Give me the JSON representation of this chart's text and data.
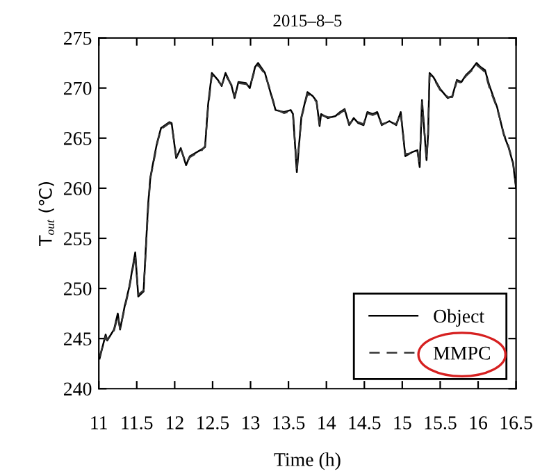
{
  "chart_data": {
    "type": "line",
    "title": "2015–8–5",
    "xlabel": "Time (h)",
    "ylabel": "T$_{out}$ (℃)",
    "xlim": [
      11,
      16.5
    ],
    "xticks": [
      11,
      11.5,
      12,
      12.5,
      13,
      13.5,
      14,
      14.5,
      15,
      15.5,
      16,
      16.5
    ],
    "ylim": [
      240,
      275
    ],
    "yticks": [
      240,
      245,
      250,
      255,
      260,
      265,
      270,
      275
    ],
    "grid": false,
    "legend": "bottom right",
    "x": [
      11.01,
      11.09,
      11.11,
      11.2,
      11.25,
      11.28,
      11.34,
      11.4,
      11.48,
      11.52,
      11.59,
      11.65,
      11.68,
      11.74,
      11.77,
      11.82,
      11.93,
      11.96,
      12.02,
      12.08,
      12.15,
      12.2,
      12.36,
      12.4,
      12.44,
      12.49,
      12.57,
      12.62,
      12.67,
      12.75,
      12.79,
      12.84,
      12.94,
      12.99,
      13.06,
      13.1,
      13.19,
      13.25,
      13.33,
      13.44,
      13.53,
      13.56,
      13.61,
      13.67,
      13.75,
      13.82,
      13.87,
      13.91,
      13.93,
      14.02,
      14.12,
      14.18,
      14.24,
      14.3,
      14.36,
      14.42,
      14.49,
      14.54,
      14.61,
      14.67,
      14.73,
      14.83,
      14.92,
      14.98,
      15.04,
      15.13,
      15.2,
      15.23,
      15.26,
      15.32,
      15.34,
      15.36,
      15.41,
      15.5,
      15.6,
      15.66,
      15.72,
      15.78,
      15.84,
      15.91,
      15.98,
      16.03,
      16.09,
      16.15,
      16.25,
      16.34,
      16.4,
      16.46,
      16.5
    ],
    "series": [
      {
        "name": "Object",
        "color": "#000000",
        "line_style": "solid",
        "values": [
          243.0,
          245.4,
          244.8,
          245.9,
          247.5,
          245.9,
          248.2,
          250.1,
          253.6,
          249.2,
          249.7,
          258.4,
          261.1,
          263.5,
          264.6,
          266.0,
          266.6,
          266.5,
          263.0,
          264.0,
          262.3,
          263.2,
          263.9,
          264.1,
          268.3,
          271.5,
          270.8,
          270.2,
          271.5,
          270.2,
          269.0,
          270.6,
          270.5,
          270.0,
          272.1,
          272.5,
          271.5,
          269.9,
          267.8,
          267.6,
          267.8,
          267.4,
          261.6,
          267.1,
          269.6,
          269.2,
          268.7,
          266.2,
          267.4,
          267.0,
          267.2,
          267.6,
          267.9,
          266.3,
          267.0,
          266.5,
          266.3,
          267.6,
          267.4,
          267.6,
          266.3,
          266.7,
          266.3,
          267.6,
          263.2,
          263.6,
          263.8,
          262.1,
          268.8,
          262.8,
          265.3,
          271.5,
          271.1,
          269.9,
          269.0,
          269.2,
          270.8,
          270.6,
          271.3,
          271.8,
          272.5,
          272.1,
          271.8,
          270.2,
          268.1,
          265.3,
          264.1,
          262.5,
          260.0
        ]
      },
      {
        "name": "MMPC",
        "color": "#333333",
        "line_style": "dashed",
        "values": [
          243.2,
          245.2,
          244.9,
          245.8,
          247.2,
          246.0,
          248.0,
          250.0,
          253.3,
          249.4,
          249.8,
          258.0,
          261.0,
          263.3,
          264.5,
          265.9,
          266.5,
          266.4,
          263.2,
          263.9,
          262.5,
          263.1,
          263.8,
          264.2,
          268.0,
          271.3,
          270.7,
          270.3,
          271.3,
          270.3,
          269.2,
          270.5,
          270.4,
          270.1,
          271.9,
          272.3,
          271.4,
          270.0,
          267.9,
          267.5,
          267.7,
          267.3,
          262.0,
          267.0,
          269.4,
          269.1,
          268.6,
          266.4,
          267.3,
          267.1,
          267.1,
          267.5,
          267.8,
          266.4,
          266.9,
          266.6,
          266.4,
          267.5,
          267.3,
          267.5,
          266.4,
          266.6,
          266.4,
          267.5,
          263.4,
          263.5,
          263.7,
          262.3,
          268.6,
          263.0,
          265.2,
          271.3,
          271.0,
          269.8,
          269.1,
          269.1,
          270.7,
          270.5,
          271.2,
          271.7,
          272.3,
          272.0,
          271.6,
          270.0,
          268.0,
          265.4,
          264.2,
          262.6,
          260.2
        ]
      }
    ]
  }
}
